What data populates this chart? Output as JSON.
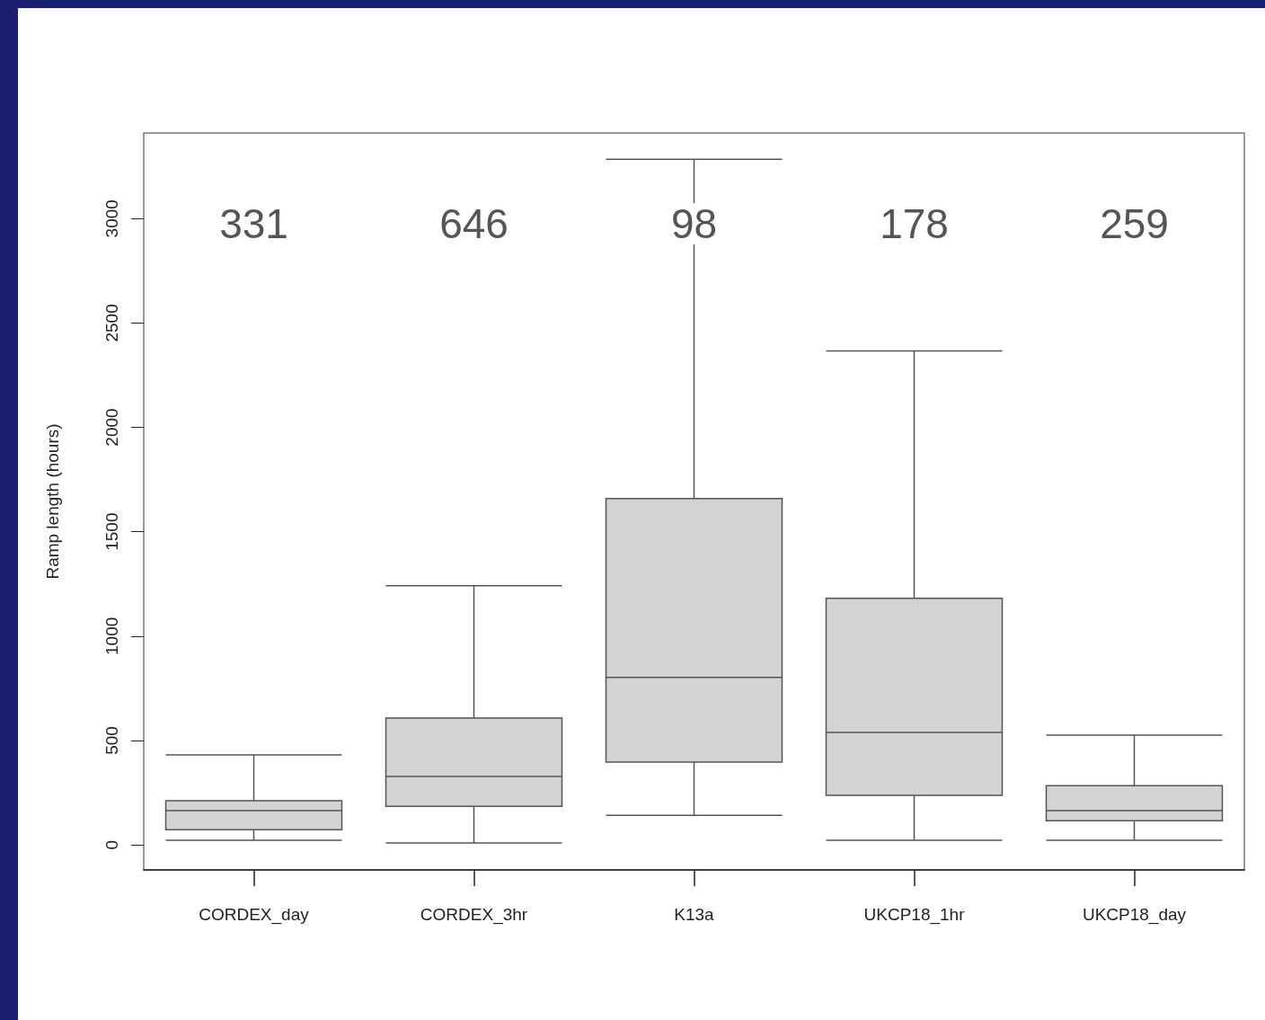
{
  "chart_data": {
    "type": "box",
    "ylabel": "Ramp length (hours)",
    "categories": [
      "CORDEX_day",
      "CORDEX_3hr",
      "K13a",
      "UKCP18_1hr",
      "UKCP18_day"
    ],
    "series": [
      {
        "color": "#d3d3d3",
        "boxes": [
          {
            "low": 22,
            "q1": 73,
            "median": 164,
            "q3": 211,
            "high": 431
          },
          {
            "low": 9,
            "q1": 185,
            "median": 328,
            "q3": 608,
            "high": 1241
          },
          {
            "low": 142,
            "q1": 397,
            "median": 802,
            "q3": 1659,
            "high": 3284
          },
          {
            "low": 22,
            "q1": 237,
            "median": 539,
            "q3": 1181,
            "high": 2366
          },
          {
            "low": 22,
            "q1": 116,
            "median": 164,
            "q3": 284,
            "high": 526
          }
        ]
      }
    ],
    "ylim": [
      -120,
      3410
    ],
    "yticks": [
      0,
      500,
      1000,
      1500,
      2000,
      2500,
      3000
    ],
    "grid": false,
    "annotations": [
      "331",
      "646",
      "98",
      "178",
      "259"
    ]
  }
}
